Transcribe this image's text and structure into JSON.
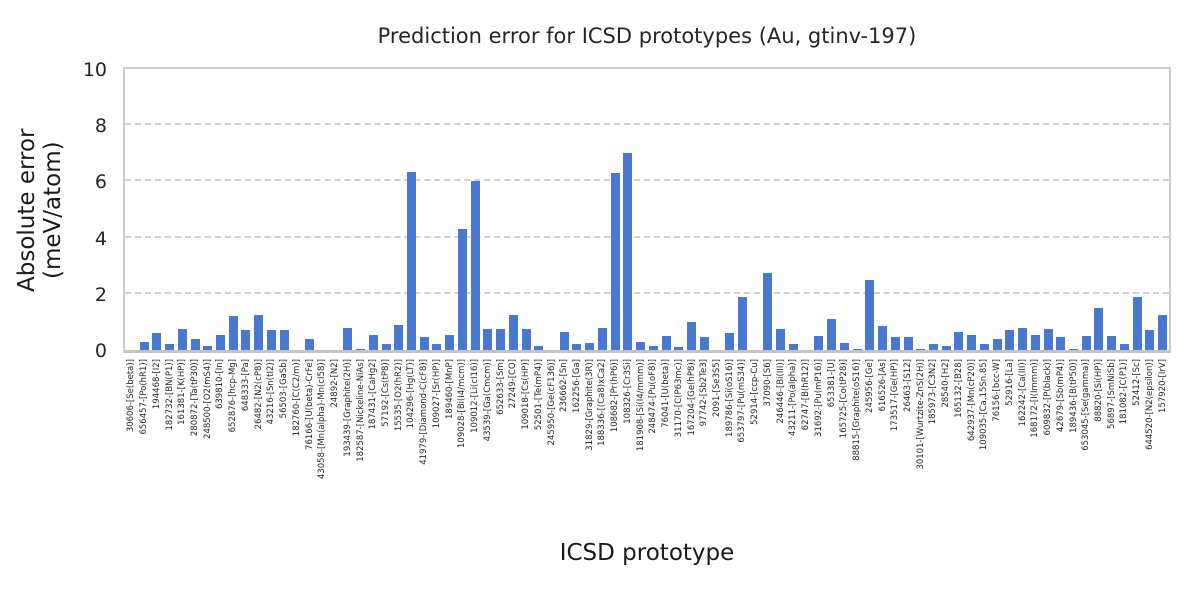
{
  "chart_data": {
    "type": "bar",
    "title": "Prediction error for ICSD prototypes (Au, gtinv-197)",
    "xlabel": "ICSD prototype",
    "ylabel": "Absolute error (meV/atom)",
    "ylim": [
      0,
      10
    ],
    "yticks": [
      0,
      2,
      4,
      6,
      8,
      10
    ],
    "grid": "horizontal-dashed",
    "legend": "none",
    "bar_color": "#4878d0",
    "categories": [
      "30606-[Se(beta)]",
      "656457-[Po(hR1)]",
      "194468-[I2]",
      "182732-[BN(P1)]",
      "161381-[K(HP)]",
      "280872-[Ta(tP30)]",
      "248500-[O2(mS4)]",
      "639810-[In]",
      "652876-[hcp-Mg]",
      "648333-[Pa]",
      "26482-[N2(cP8)]",
      "43216-[Sn(tI2)]",
      "56503-[GaSb]",
      "182760-[C(C2/m)]",
      "76166-[U(beta)-CrFe]",
      "43058-[Mn(alpha)-Mn(cI58)]",
      "24892-[N2]",
      "193439-[Graphite(2H)]",
      "182587-[Nickeline-NiAs]",
      "187431-[CaHg2]",
      "57192-[Cs(tP8)]",
      "15535-[O2(hR2)]",
      "104296-[Hg(LT)]",
      "41979-[Diamond-C(cF8)]",
      "109027-[Sr(HP)]",
      "189460-[MnP]",
      "109028-[Bi(I4/mcm)]",
      "109012-[Li(cI16)]",
      "43539-[Ga(Cmcm)]",
      "652633-[Sm]",
      "27249-[CO]",
      "109018-[Cs(HP)]",
      "52501-[Te(mP4)]",
      "245950-[Ge(cF136)]",
      "236662-[Sn]",
      "162256-[Ga]",
      "31829-[Graphite(3R)]",
      "188336-[(Ca8)xCa2]",
      "108682-[Pr(hP6)]",
      "108326-[Cr3Si]",
      "181908-[Si(I4/mmm)]",
      "248474-[Pu(oF8)]",
      "76041-[U(beta)]",
      "31170-[C(P63mc)]",
      "167204-[Ge(hP8)]",
      "97742-[Sb2Te3]",
      "2091-[Se3S5]",
      "189786-[Si(oS16)]",
      "653797-[Pu(mS34)]",
      "52914-[ccp-Cu]",
      "37090-[S6]",
      "246446-[Bi(III)]",
      "43211-[Po(alpha)]",
      "62747-[B(hR12)]",
      "31692-[Pu(mP16)]",
      "653381-[U]",
      "165725-[Co(tP28)]",
      "88815-[Graphite(oS16)]",
      "245956-[Ge]",
      "616526-[As]",
      "173517-[Ge(HP)]",
      "26463-[S12]",
      "30101-[Wurtzite-ZnS(2H)]",
      "185973-[C3N2]",
      "28540-[H2]",
      "165132-[B28]",
      "642937-[Mn(cP20)]",
      "109035-[Ca.15Sn.85]",
      "76156-[bcc-W]",
      "52916-[La]",
      "162242-[Ca(III)]",
      "168172-[I(Immm)]",
      "609832-[P(black)]",
      "42679-[Sb(mP4)]",
      "189436-[B(tP50)]",
      "653045-[Se(gamma)]",
      "88820-[Si(HP)]",
      "56897-[SmNiSb]",
      "181082-[C(P1)]",
      "52412-[Sc]",
      "644520-[N2(epsilon)]",
      "157920-[IrV]"
    ],
    "values": [
      0,
      0.3,
      0.6,
      0.2,
      0.75,
      0.4,
      0.15,
      0.55,
      1.2,
      0.7,
      1.25,
      0.7,
      0.7,
      0,
      0.4,
      0,
      0,
      0.8,
      0.05,
      0.55,
      0.2,
      0.9,
      6.35,
      0.45,
      0.2,
      0.55,
      4.3,
      6.0,
      0.75,
      0.75,
      1.25,
      0.75,
      0.15,
      0,
      0.65,
      0.2,
      0.25,
      0.8,
      6.3,
      7.0,
      0.3,
      0.15,
      0.5,
      0.1,
      1.0,
      0.45,
      0,
      0.6,
      1.9,
      0,
      2.75,
      0.75,
      0.2,
      0,
      0.5,
      1.1,
      0.25,
      0.05,
      2.5,
      0.85,
      0.45,
      0.45,
      0.05,
      0.2,
      0.15,
      0.65,
      0.55,
      0.2,
      0.4,
      0.7,
      0.8,
      0.55,
      0.75,
      0.45,
      0.05,
      0.5,
      1.5,
      0.5,
      0.2,
      1.9,
      0.7,
      1.25
    ]
  }
}
